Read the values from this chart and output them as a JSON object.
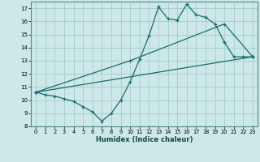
{
  "xlabel": "Humidex (Indice chaleur)",
  "background_color": "#cce8e8",
  "grid_color": "#aacfcf",
  "line_color": "#1a6b6b",
  "xlim": [
    -0.5,
    23.5
  ],
  "ylim": [
    8,
    17.5
  ],
  "yticks": [
    8,
    9,
    10,
    11,
    12,
    13,
    14,
    15,
    16,
    17
  ],
  "xticks": [
    0,
    1,
    2,
    3,
    4,
    5,
    6,
    7,
    8,
    9,
    10,
    11,
    12,
    13,
    14,
    15,
    16,
    17,
    18,
    19,
    20,
    21,
    22,
    23
  ],
  "line1_x": [
    0,
    1,
    2,
    3,
    4,
    5,
    6,
    7,
    8,
    9,
    10,
    11,
    12,
    13,
    14,
    15,
    16,
    17,
    18,
    19,
    20,
    21,
    22,
    23
  ],
  "line1_y": [
    10.6,
    10.4,
    10.3,
    10.1,
    9.9,
    9.5,
    9.1,
    8.4,
    9.0,
    10.0,
    11.4,
    13.1,
    14.9,
    17.1,
    16.2,
    16.1,
    17.3,
    16.5,
    16.3,
    15.8,
    14.4,
    13.3,
    13.3,
    13.3
  ],
  "line2_x": [
    0,
    10,
    20,
    23
  ],
  "line2_y": [
    10.6,
    13.0,
    15.8,
    13.3
  ],
  "line3_x": [
    0,
    23
  ],
  "line3_y": [
    10.6,
    13.3
  ]
}
